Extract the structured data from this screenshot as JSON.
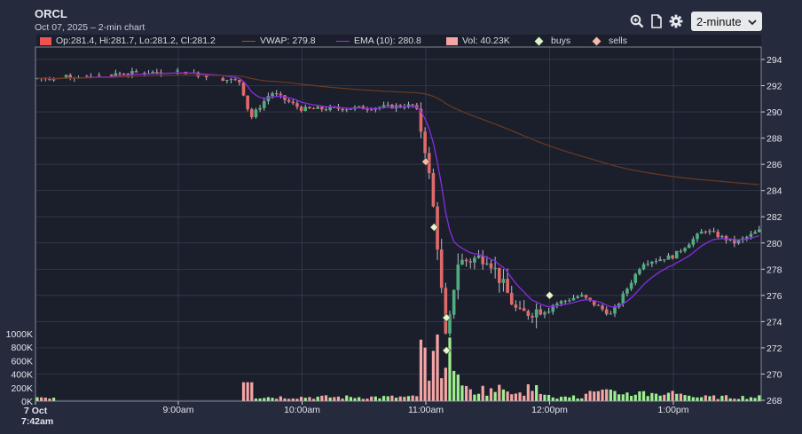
{
  "header": {
    "title": "ORCL",
    "subtitle": "Oct 07, 2025 – 2-min chart"
  },
  "toolbar": {
    "zoom_icon": "magnify-plus-icon",
    "document_icon": "document-icon",
    "settings_icon": "gear-icon",
    "interval_value": "2-minute"
  },
  "legend": {
    "ohlc": "Op:281.4, Hi:281.7, Lo:281.2, Cl:281.2",
    "vwap": "VWAP: 279.8",
    "ema": "EMA (10): 280.8",
    "volume": "Vol: 40.23K",
    "buys": "buys",
    "sells": "sells"
  },
  "colors": {
    "up": "#4fae7e",
    "down": "#e06a6a",
    "vol_up": "#9ef08f",
    "vol_down": "#f4a5a5",
    "ema": "#8a2be2",
    "vwap": "#6b3a1f",
    "background": "#1b1f2c",
    "page": "#252a3d"
  },
  "chart_data": {
    "type": "candlestick",
    "x_axis": {
      "ticks": [
        "7 Oct 7:42am",
        "9:00am",
        "10:00am",
        "11:00am",
        "12:00pm",
        "1:00pm"
      ]
    },
    "y_axis": {
      "price_ticks": [
        "294",
        "292",
        "290",
        "288",
        "286",
        "284",
        "282",
        "280",
        "278",
        "276",
        "274",
        "272",
        "270",
        "268"
      ],
      "price_range": [
        268,
        295
      ],
      "volume_ticks": [
        "1000K",
        "800K",
        "600K",
        "400K",
        "200K",
        "0K"
      ],
      "volume_range": [
        0,
        1000000
      ]
    },
    "price_path": [
      {
        "t": "7:42am",
        "p": 292.5
      },
      {
        "t": "8:00am",
        "p": 292.6
      },
      {
        "t": "8:30am",
        "p": 292.9
      },
      {
        "t": "9:00am",
        "p": 293.1
      },
      {
        "t": "9:30am",
        "p": 292.3
      },
      {
        "t": "9:35am",
        "p": 289.5
      },
      {
        "t": "9:45am",
        "p": 291.5
      },
      {
        "t": "10:00am",
        "p": 290.2
      },
      {
        "t": "10:30am",
        "p": 290.3
      },
      {
        "t": "10:55am",
        "p": 290.5
      },
      {
        "t": "11:00am",
        "p": 287.0
      },
      {
        "t": "11:05am",
        "p": 281.0
      },
      {
        "t": "11:10am",
        "p": 272.0
      },
      {
        "t": "11:15am",
        "p": 278.5
      },
      {
        "t": "11:30am",
        "p": 279.0
      },
      {
        "t": "11:45am",
        "p": 274.5
      },
      {
        "t": "12:00pm",
        "p": 275.2
      },
      {
        "t": "12:15pm",
        "p": 276.0
      },
      {
        "t": "12:30pm",
        "p": 274.5
      },
      {
        "t": "12:45pm",
        "p": 278.5
      },
      {
        "t": "1:00pm",
        "p": 279.0
      },
      {
        "t": "1:15pm",
        "p": 281.0
      },
      {
        "t": "1:30pm",
        "p": 280.0
      },
      {
        "t": "1:45pm",
        "p": 281.2
      }
    ],
    "buys": [
      {
        "t": "11:04am",
        "p": 281.2
      },
      {
        "t": "11:10am",
        "p": 274.3
      },
      {
        "t": "11:10am",
        "p": 271.8
      },
      {
        "t": "12:00pm",
        "p": 276.0
      }
    ],
    "sells": [
      {
        "t": "11:00am",
        "p": 286.2
      }
    ],
    "vwap_level": 279.8,
    "ema_period": 10
  }
}
